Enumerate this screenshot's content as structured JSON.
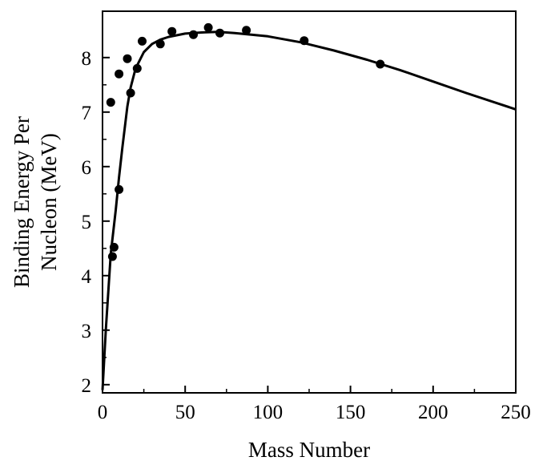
{
  "chart_data": {
    "type": "scatter",
    "title": "",
    "xlabel": "Mass Number",
    "ylabel_lines": [
      "Binding Energy Per",
      "Nucleon (MeV)"
    ],
    "xlim": [
      0,
      250
    ],
    "ylim": [
      1.85,
      8.85
    ],
    "xticks": [
      0,
      50,
      100,
      150,
      200,
      250
    ],
    "yticks": [
      2,
      3,
      4,
      5,
      6,
      7,
      8
    ],
    "grid": false,
    "legend": "none",
    "series": [
      {
        "kind": "points",
        "x": [
          5,
          6,
          7,
          10,
          10,
          15,
          17,
          21,
          24,
          35,
          42,
          55,
          64,
          71,
          87,
          122,
          168
        ],
        "y": [
          7.18,
          4.35,
          4.52,
          5.58,
          7.7,
          7.98,
          7.35,
          7.8,
          8.3,
          8.25,
          8.48,
          8.42,
          8.55,
          8.45,
          8.5,
          8.31,
          7.88
        ]
      },
      {
        "kind": "curve",
        "x": [
          0,
          2,
          5,
          8,
          10,
          12,
          15,
          17,
          20,
          25,
          30,
          35,
          40,
          50,
          60,
          70,
          80,
          100,
          120,
          140,
          160,
          180,
          200,
          220,
          250
        ],
        "y": [
          1.9,
          3.0,
          4.4,
          5.2,
          5.8,
          6.35,
          7.1,
          7.45,
          7.8,
          8.1,
          8.25,
          8.33,
          8.38,
          8.44,
          8.46,
          8.47,
          8.45,
          8.39,
          8.28,
          8.13,
          7.96,
          7.77,
          7.56,
          7.35,
          7.05
        ]
      }
    ]
  }
}
